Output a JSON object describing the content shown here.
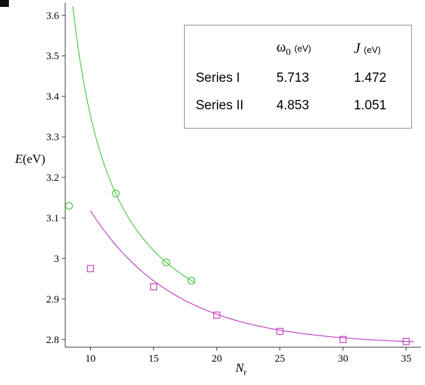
{
  "chart_data": {
    "type": "scatter",
    "title": "",
    "xlabel": "N_r",
    "ylabel": "E (eV)",
    "xlim": [
      8,
      36
    ],
    "ylim": [
      2.781,
      3.631
    ],
    "grid": false,
    "x_ticks": [
      10,
      15,
      20,
      25,
      30,
      35
    ],
    "y_ticks": [
      2.8,
      2.9,
      3.0,
      3.1,
      3.2,
      3.3,
      3.4,
      3.5,
      3.6
    ],
    "y_tick_labels": [
      "2.8",
      "2.9",
      "3",
      "3.1",
      "3.2",
      "3.3",
      "3.4",
      "3.5",
      "3.6"
    ],
    "series": [
      {
        "name": "Series I",
        "color": "#44c944",
        "marker": "circle",
        "points": [
          [
            8.3,
            3.13
          ],
          [
            12,
            3.16
          ],
          [
            16,
            2.99
          ],
          [
            18,
            2.945
          ]
        ],
        "fit_params": {
          "omega0_eV": 5.713,
          "J_eV": 1.472
        },
        "curve": {
          "form": "a+b/(x-c)",
          "a": 2.703,
          "b": 3.09,
          "c": 5.24,
          "x_start": 8.6,
          "x_end": 18.3
        }
      },
      {
        "name": "Series II",
        "color": "#c03cc0",
        "marker": "square",
        "points": [
          [
            10,
            2.975
          ],
          [
            15,
            2.93
          ],
          [
            20,
            2.86
          ],
          [
            25,
            2.82
          ],
          [
            30,
            2.8
          ],
          [
            35,
            2.795
          ]
        ],
        "fit_params": {
          "omega0_eV": 4.853,
          "J_eV": 1.051
        },
        "curve": {
          "form": "a+b*exp(-x/t)",
          "a": 2.787,
          "b": 1.452,
          "t": 6.76,
          "x_start": 10.0,
          "x_end": 35.6
        }
      }
    ]
  },
  "labels": {
    "y_main": "E",
    "y_unit": "(eV)",
    "x_main": "N",
    "x_sub": "r"
  },
  "legend": {
    "col_omega": {
      "symbol": "ω",
      "sub": "0",
      "unit": "(eV)"
    },
    "col_j": {
      "symbol": "J",
      "unit": "(eV)"
    },
    "rows": [
      {
        "label": "Series I",
        "omega0": "5.713",
        "J": "1.472"
      },
      {
        "label": "Series II",
        "omega0": "4.853",
        "J": "1.051"
      }
    ]
  }
}
